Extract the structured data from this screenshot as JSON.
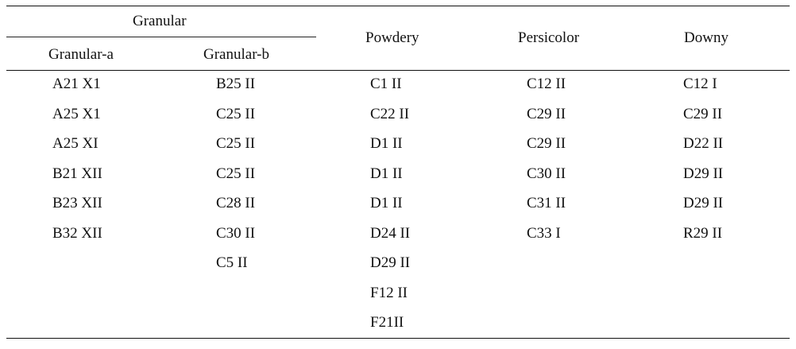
{
  "table": {
    "headers": {
      "group": "Granular",
      "granular_a": "Granular-a",
      "granular_b": "Granular-b",
      "powdery": "Powdery",
      "persicolor": "Persicolor",
      "downy": "Downy"
    },
    "columns": {
      "granular_a": [
        "A21 X1",
        "A25 X1",
        "A25 XI",
        "B21 XII",
        "B23 XII",
        "B32 XII"
      ],
      "granular_b": [
        "B25 II",
        "C25 II",
        "C25 II",
        "C25 II",
        "C28 II",
        "C30 II",
        "C5 II"
      ],
      "powdery": [
        "C1 II",
        "C22 II",
        "D1 II",
        "D1 II",
        "D1 II",
        "D24 II",
        "D29 II",
        "F12 II",
        "F21II"
      ],
      "persicolor": [
        "C12 II",
        "C29 II",
        "C29 II",
        "C30 II",
        "C31 II",
        "C33 I"
      ],
      "downy": [
        "C12 I",
        "C29 II",
        "D22 II",
        "D29 II",
        "D29 II",
        "R29 II"
      ]
    }
  }
}
